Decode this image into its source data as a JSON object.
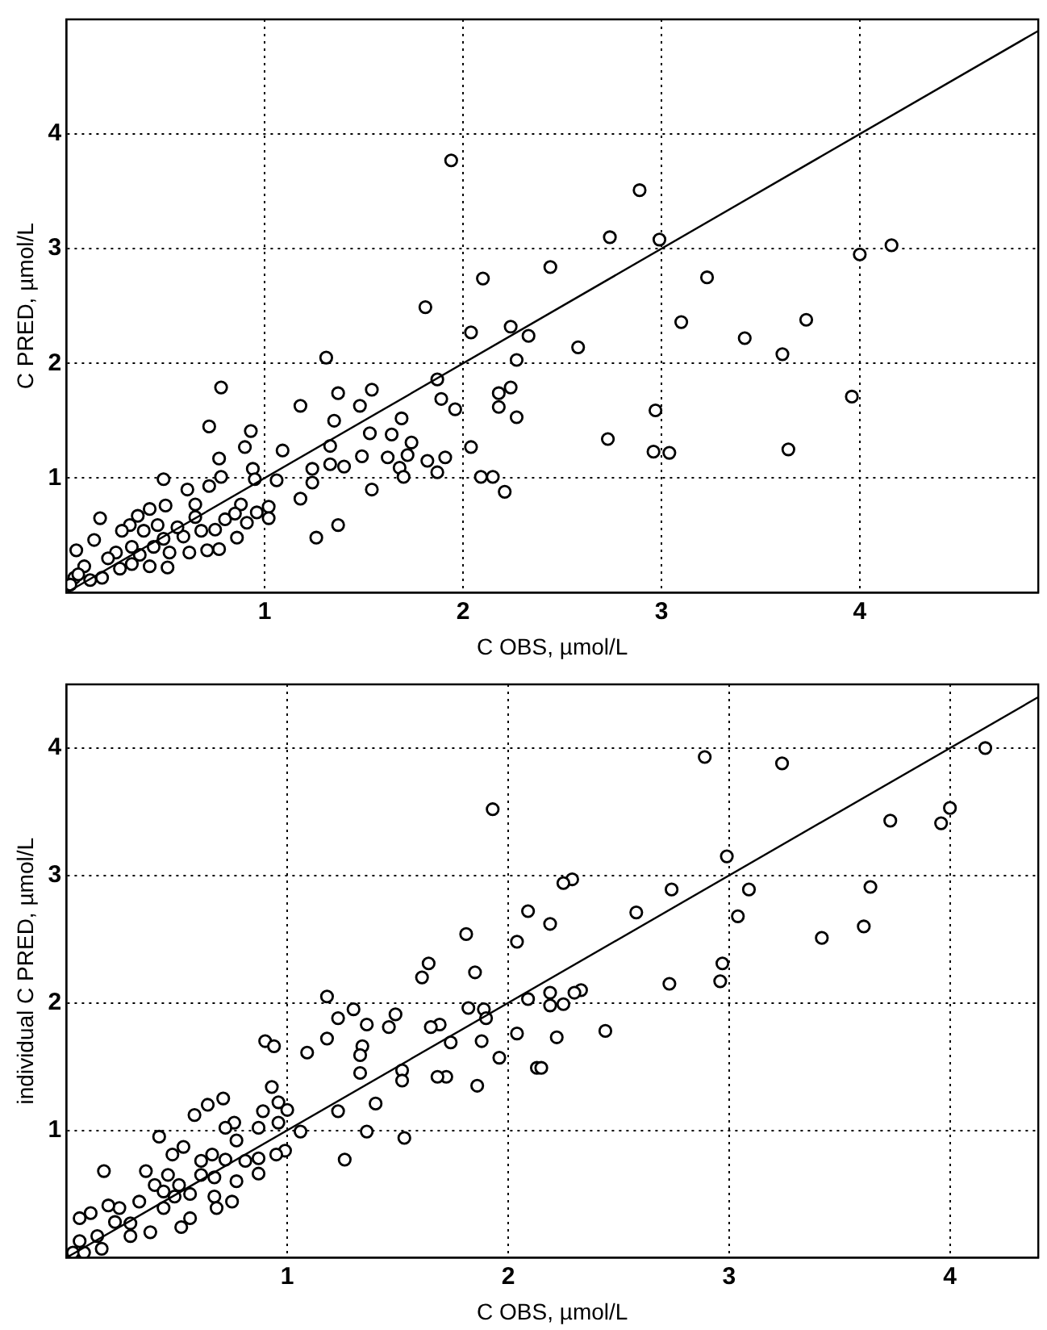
{
  "chart_data": [
    {
      "type": "scatter",
      "xlabel": "C OBS, µmol/L",
      "ylabel": "C PRED, µmol/L",
      "xlim": [
        0,
        4.9
      ],
      "ylim": [
        0,
        5
      ],
      "xticks": [
        1,
        2,
        3,
        4
      ],
      "yticks": [
        1,
        2,
        3,
        4
      ],
      "grid": true,
      "legend": false,
      "marker": "circle",
      "series": [
        {
          "type": "scatter",
          "color": "#000000",
          "x": [
            1.94,
            2.1,
            1.81,
            2.04,
            2.24,
            2.33,
            2.27,
            1.87,
            1.89,
            1.96,
            2.18,
            2.24,
            2.18,
            2.27,
            2.04,
            2.09,
            2.15,
            2.21,
            1.82,
            1.87,
            1.91,
            1.31,
            1.37,
            1.35,
            1.33,
            1.33,
            1.4,
            1.54,
            1.48,
            1.53,
            1.49,
            1.54,
            1.64,
            1.69,
            1.74,
            1.72,
            1.62,
            1.68,
            1.7,
            1.18,
            1.09,
            1.06,
            1.18,
            1.24,
            1.24,
            1.26,
            1.37,
            0.78,
            0.72,
            0.77,
            0.78,
            0.93,
            0.9,
            0.94,
            0.95,
            1.02,
            1.02,
            0.96,
            0.49,
            0.17,
            0.61,
            0.72,
            0.88,
            0.65,
            0.5,
            0.42,
            0.36,
            0.32,
            0.75,
            0.71,
            0.77,
            0.86,
            0.91,
            0.59,
            0.52,
            0.51,
            0.42,
            0.33,
            0.25,
            0.14,
            0.21,
            0.09,
            0.05,
            0.04,
            0.02,
            0.06,
            0.12,
            0.28,
            0.39,
            0.46,
            0.56,
            0.65,
            0.68,
            0.44,
            0.37,
            0.27,
            0.18,
            0.33,
            0.49,
            0.62,
            0.8,
            0.85,
            2.89,
            2.74,
            2.99,
            2.44,
            3.23,
            2.58,
            3.1,
            3.42,
            3.73,
            3.61,
            4.0,
            4.16,
            3.96,
            3.64,
            2.97,
            2.96,
            3.04,
            2.73
          ],
          "values": [
            3.77,
            2.74,
            2.49,
            2.27,
            2.32,
            2.24,
            2.03,
            1.86,
            1.69,
            1.6,
            1.74,
            1.79,
            1.62,
            1.53,
            1.27,
            1.01,
            1.01,
            0.88,
            1.15,
            1.05,
            1.18,
            2.05,
            1.74,
            1.5,
            1.28,
            1.12,
            1.1,
            1.77,
            1.63,
            1.39,
            1.19,
            0.9,
            1.38,
            1.52,
            1.31,
            1.2,
            1.18,
            1.09,
            1.01,
            1.63,
            1.24,
            0.98,
            0.82,
            1.08,
            0.96,
            0.48,
            0.59,
            1.79,
            1.45,
            1.17,
            1.01,
            1.41,
            1.27,
            1.08,
            0.99,
            0.75,
            0.65,
            0.7,
            0.99,
            0.65,
            0.9,
            0.93,
            0.77,
            0.77,
            0.76,
            0.73,
            0.67,
            0.59,
            0.55,
            0.37,
            0.38,
            0.48,
            0.61,
            0.49,
            0.35,
            0.22,
            0.23,
            0.4,
            0.35,
            0.46,
            0.3,
            0.23,
            0.37,
            0.13,
            0.07,
            0.16,
            0.11,
            0.54,
            0.54,
            0.59,
            0.57,
            0.66,
            0.54,
            0.4,
            0.33,
            0.21,
            0.13,
            0.25,
            0.47,
            0.35,
            0.64,
            0.69,
            3.51,
            3.1,
            3.08,
            2.84,
            2.75,
            2.14,
            2.36,
            2.22,
            2.38,
            2.08,
            2.95,
            3.03,
            1.71,
            1.25,
            1.59,
            1.23,
            1.22,
            1.34
          ]
        },
        {
          "type": "line",
          "color": "#000000",
          "marker": "none",
          "x": [
            0,
            4.9
          ],
          "values": [
            0,
            4.9
          ]
        }
      ]
    },
    {
      "type": "scatter",
      "xlabel": "C OBS, µmol/L",
      "ylabel": "individual C PRED, µmol/L",
      "xlim": [
        0,
        4.4
      ],
      "ylim": [
        0,
        4.5
      ],
      "xticks": [
        1,
        2,
        3,
        4
      ],
      "yticks": [
        1,
        2,
        3,
        4
      ],
      "grid": true,
      "legend": false,
      "marker": "circle",
      "series": [
        {
          "type": "scatter",
          "color": "#000000",
          "x": [
            1.93,
            2.09,
            2.04,
            1.81,
            1.85,
            1.64,
            1.61,
            1.89,
            1.82,
            1.9,
            2.09,
            2.04,
            1.88,
            1.96,
            2.13,
            1.86,
            1.74,
            1.69,
            1.65,
            1.72,
            1.68,
            1.18,
            1.3,
            1.23,
            1.36,
            1.49,
            1.46,
            1.18,
            1.09,
            1.34,
            1.33,
            1.33,
            1.52,
            1.52,
            1.23,
            1.4,
            1.36,
            1.53,
            1.26,
            0.9,
            0.94,
            0.93,
            0.89,
            0.96,
            1.0,
            1.06,
            0.96,
            0.87,
            0.99,
            0.95,
            0.87,
            0.87,
            0.81,
            0.71,
            0.64,
            0.58,
            0.76,
            0.72,
            0.77,
            0.42,
            0.17,
            0.53,
            0.48,
            0.61,
            0.66,
            0.72,
            0.67,
            0.77,
            0.67,
            0.68,
            0.75,
            0.51,
            0.56,
            0.52,
            0.44,
            0.36,
            0.4,
            0.44,
            0.46,
            0.33,
            0.38,
            0.29,
            0.24,
            0.19,
            0.22,
            0.11,
            0.06,
            0.14,
            0.06,
            0.03,
            0.08,
            0.16,
            0.29,
            0.49,
            0.61,
            0.56,
            2.89,
            3.24,
            4.16,
            4.0,
            3.96,
            3.73,
            2.99,
            3.64,
            3.09,
            3.04,
            3.61,
            3.42,
            2.97,
            2.96,
            2.74,
            2.58,
            2.73,
            2.29,
            2.25,
            2.19,
            2.33,
            2.3,
            2.19,
            2.19,
            2.25,
            2.22,
            2.15,
            2.44
          ],
          "values": [
            3.52,
            2.72,
            2.48,
            2.54,
            2.24,
            2.31,
            2.2,
            1.95,
            1.96,
            1.88,
            2.03,
            1.76,
            1.7,
            1.57,
            1.49,
            1.35,
            1.69,
            1.83,
            1.81,
            1.42,
            1.42,
            2.05,
            1.95,
            1.88,
            1.83,
            1.91,
            1.81,
            1.72,
            1.61,
            1.66,
            1.59,
            1.45,
            1.47,
            1.39,
            1.15,
            1.21,
            0.99,
            0.94,
            0.77,
            1.7,
            1.66,
            1.34,
            1.15,
            1.22,
            1.16,
            0.99,
            1.06,
            1.02,
            0.84,
            0.81,
            0.78,
            0.66,
            0.76,
            1.25,
            1.2,
            1.12,
            1.06,
            1.02,
            0.92,
            0.95,
            0.68,
            0.87,
            0.81,
            0.76,
            0.81,
            0.77,
            0.63,
            0.6,
            0.48,
            0.39,
            0.44,
            0.57,
            0.31,
            0.24,
            0.39,
            0.68,
            0.57,
            0.52,
            0.65,
            0.44,
            0.2,
            0.27,
            0.39,
            0.41,
            0.28,
            0.35,
            0.31,
            0.17,
            0.13,
            0.04,
            0.04,
            0.07,
            0.17,
            0.48,
            0.65,
            0.5,
            3.93,
            3.88,
            4.0,
            3.53,
            3.41,
            3.43,
            3.15,
            2.91,
            2.89,
            2.68,
            2.6,
            2.51,
            2.31,
            2.17,
            2.89,
            2.71,
            2.15,
            2.97,
            2.94,
            2.62,
            2.1,
            2.08,
            2.08,
            1.98,
            1.99,
            1.73,
            1.49,
            1.78
          ]
        },
        {
          "type": "line",
          "color": "#000000",
          "marker": "none",
          "x": [
            0,
            4.4
          ],
          "values": [
            0,
            4.4
          ]
        }
      ]
    }
  ]
}
